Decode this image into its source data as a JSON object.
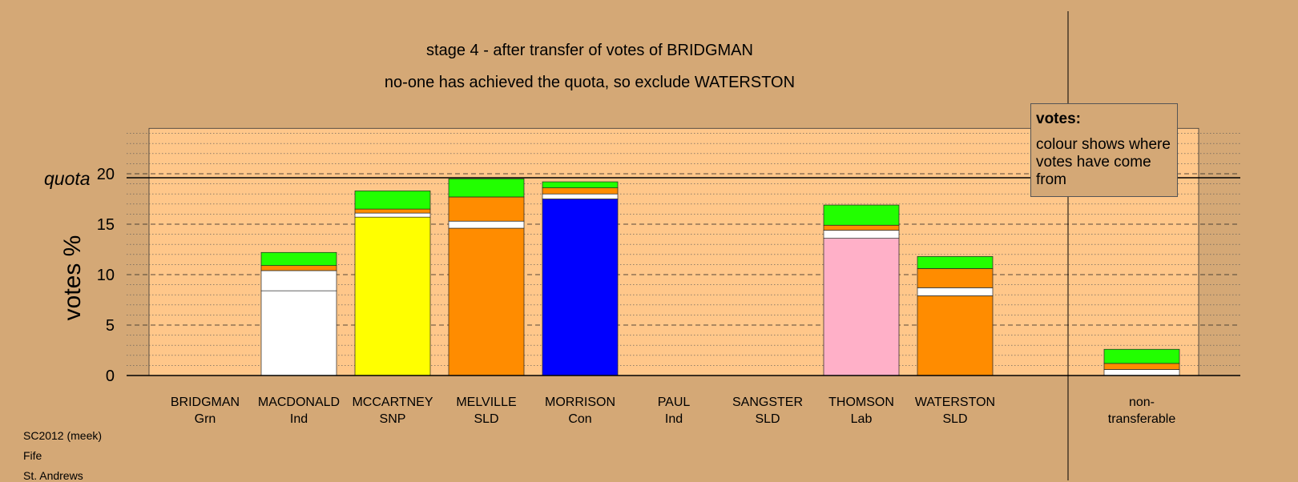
{
  "chart_data": {
    "type": "bar",
    "stacked": true,
    "title": "stage 4 - after transfer of votes of BRIDGMAN",
    "subtitle": "no-one has achieved the quota, so exclude WATERSTON",
    "ylabel": "votes %",
    "quota_label": "quota",
    "quota": 19.6,
    "ylim": [
      0,
      24.5
    ],
    "yticks": [
      0,
      5,
      10,
      15,
      20
    ],
    "categories": [
      {
        "name": "BRIDGMAN",
        "party": "Grn"
      },
      {
        "name": "MACDONALD",
        "party": "Ind"
      },
      {
        "name": "MCCARTNEY",
        "party": "SNP"
      },
      {
        "name": "MELVILLE",
        "party": "SLD"
      },
      {
        "name": "MORRISON",
        "party": "Con"
      },
      {
        "name": "PAUL",
        "party": "Ind"
      },
      {
        "name": "SANGSTER",
        "party": "SLD"
      },
      {
        "name": "THOMSON",
        "party": "Lab"
      },
      {
        "name": "WATERSTON",
        "party": "SLD"
      },
      {
        "name": "non-",
        "party": "transferable"
      }
    ],
    "stacks": [
      [],
      [
        {
          "value": 8.4,
          "color": "#FFFFFF"
        },
        {
          "value": 2.0,
          "color": "#FFFFFF"
        },
        {
          "value": 0.5,
          "color": "#FF8C00"
        },
        {
          "value": 1.3,
          "color": "#22FF00"
        }
      ],
      [
        {
          "value": 15.7,
          "color": "#FFFF00"
        },
        {
          "value": 0.4,
          "color": "#FFFFFF"
        },
        {
          "value": 0.4,
          "color": "#FF8C00"
        },
        {
          "value": 1.8,
          "color": "#22FF00"
        }
      ],
      [
        {
          "value": 14.6,
          "color": "#FF8C00"
        },
        {
          "value": 0.7,
          "color": "#FFFFFF"
        },
        {
          "value": 2.4,
          "color": "#FF8C00"
        },
        {
          "value": 1.8,
          "color": "#22FF00"
        }
      ],
      [
        {
          "value": 17.5,
          "color": "#0000FF"
        },
        {
          "value": 0.5,
          "color": "#FFFFFF"
        },
        {
          "value": 0.6,
          "color": "#FF8C00"
        },
        {
          "value": 0.6,
          "color": "#22FF00"
        }
      ],
      [],
      [],
      [
        {
          "value": 13.6,
          "color": "#FFB0C8"
        },
        {
          "value": 0.8,
          "color": "#FFFFFF"
        },
        {
          "value": 0.5,
          "color": "#FF8C00"
        },
        {
          "value": 2.0,
          "color": "#22FF00"
        }
      ],
      [
        {
          "value": 7.9,
          "color": "#FF8C00"
        },
        {
          "value": 0.8,
          "color": "#FFFFFF"
        },
        {
          "value": 1.9,
          "color": "#FF8C00"
        },
        {
          "value": 1.2,
          "color": "#22FF00"
        }
      ],
      [
        {
          "value": 0.6,
          "color": "#FFFFFF"
        },
        {
          "value": 0.6,
          "color": "#FF8C00"
        },
        {
          "value": 1.4,
          "color": "#22FF00"
        }
      ]
    ],
    "colors": {
      "background": "#D4A876",
      "plot_area": "#FFC78A"
    }
  },
  "legend": {
    "title": "votes:",
    "text": "colour shows where votes have come from"
  },
  "footer": {
    "line1": "SC2012 (meek)",
    "line2": "Fife",
    "line3": "St. Andrews"
  }
}
